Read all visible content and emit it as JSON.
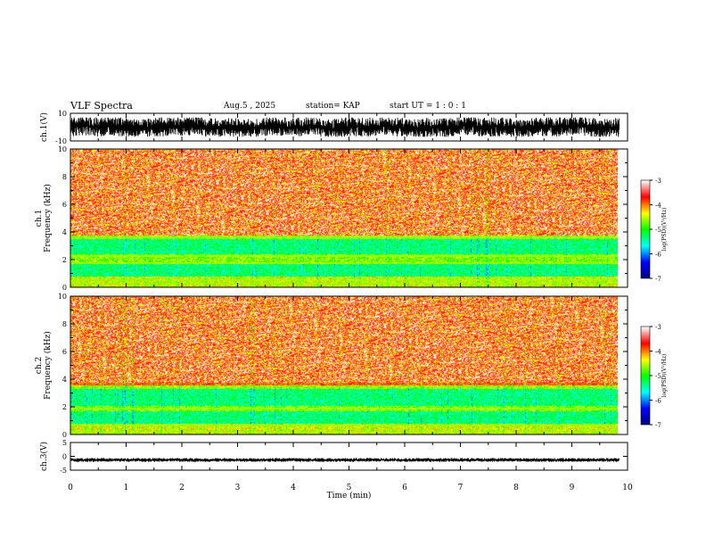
{
  "header": {
    "title": "VLF Spectra",
    "date": "Aug.5 , 2025",
    "station": "station= KAP",
    "start": "start UT = 1 : 0 : 1"
  },
  "chart_data": [
    {
      "type": "line",
      "panel": "ch1-waveform",
      "ylabel": "ch.1(V)",
      "ylim": [
        -10,
        10
      ],
      "yticks": [
        "10",
        "-10"
      ],
      "xlim": [
        0,
        10
      ],
      "description_values": {
        "envelope_min": -7,
        "envelope_max": 7
      }
    },
    {
      "type": "heatmap",
      "panel": "ch1-spectrogram",
      "ylabel": "ch.1 Frequency (kHz)",
      "ylim": [
        0,
        10
      ],
      "yticks": [
        "0",
        "2",
        "4",
        "6",
        "8",
        "10"
      ],
      "xlim": [
        0,
        10
      ],
      "data_end_min": 9.85,
      "bands": [
        {
          "from": 0,
          "to": 0.8,
          "level": -4.0
        },
        {
          "from": 0.8,
          "to": 1.8,
          "level": -5.0
        },
        {
          "from": 1.8,
          "to": 2.4,
          "level": -4.3
        },
        {
          "from": 2.4,
          "to": 3.5,
          "level": -5.0
        },
        {
          "from": 3.5,
          "to": 3.8,
          "level": -4.2
        },
        {
          "from": 3.8,
          "to": 10,
          "level": -3.3
        }
      ],
      "lines_khz": [
        0.3,
        0.55,
        1.8,
        2.3,
        3.65
      ],
      "colorbar": {
        "label": "log(PSD)(V²/Hz)",
        "range": [
          -7,
          -3
        ],
        "ticks": [
          "-3",
          "-4",
          "-5",
          "-6",
          "-7"
        ]
      }
    },
    {
      "type": "heatmap",
      "panel": "ch2-spectrogram",
      "ylabel": "ch.2 Frequency (kHz)",
      "ylim": [
        0,
        10
      ],
      "yticks": [
        "0",
        "2",
        "4",
        "6",
        "8",
        "10"
      ],
      "xlim": [
        0,
        10
      ],
      "data_end_min": 9.85,
      "bands": [
        {
          "from": 0,
          "to": 0.8,
          "level": -4.0
        },
        {
          "from": 0.8,
          "to": 1.7,
          "level": -5.0
        },
        {
          "from": 1.7,
          "to": 2.1,
          "level": -4.3
        },
        {
          "from": 2.1,
          "to": 3.3,
          "level": -5.0
        },
        {
          "from": 3.3,
          "to": 3.6,
          "level": -4.2
        },
        {
          "from": 3.6,
          "to": 10,
          "level": -3.3
        }
      ],
      "lines_khz": [
        0.25,
        0.7,
        1.9
      ],
      "colorbar": {
        "label": "log(PSD)(V²/Hz)",
        "range": [
          -7,
          -3
        ],
        "ticks": [
          "-3",
          "-4",
          "-5",
          "-6",
          "-7"
        ]
      }
    },
    {
      "type": "line",
      "panel": "ch3-waveform",
      "ylabel": "ch.3(V)",
      "ylim": [
        -5,
        5
      ],
      "yticks": [
        "5",
        "0",
        "-5"
      ],
      "xlim": [
        0,
        10
      ],
      "description_values": {
        "envelope_min": -2,
        "envelope_max": -0.6
      }
    }
  ],
  "xaxis": {
    "label": "Time (min)",
    "ticks": [
      "0",
      "1",
      "2",
      "3",
      "4",
      "5",
      "6",
      "7",
      "8",
      "9",
      "10"
    ]
  },
  "colors": {
    "waveform": "#000000",
    "colormap": [
      "#00007f",
      "#0000ff",
      "#00ffff",
      "#00ff00",
      "#ffff00",
      "#ff0000",
      "#ffffff"
    ]
  }
}
